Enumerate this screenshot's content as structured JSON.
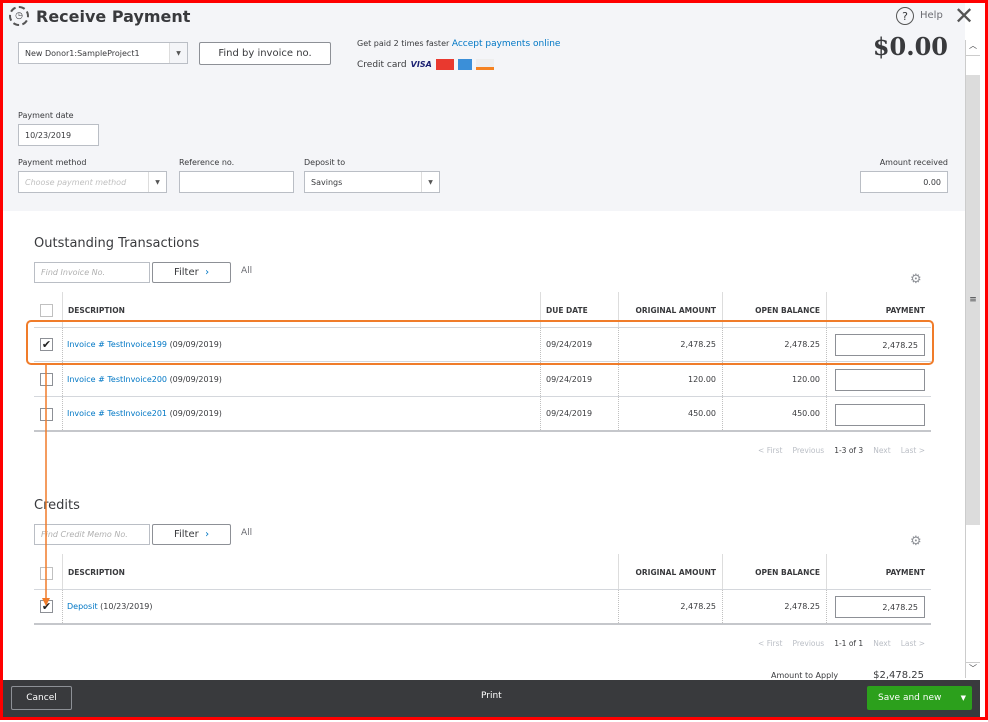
{
  "header": {
    "title": "Receive Payment",
    "help_label": "Help",
    "amount_total": "$0.00"
  },
  "customer": {
    "value": "New Donor1:SampleProject1"
  },
  "find_invoice_label": "Find by invoice no.",
  "promo": {
    "text": "Get paid 2 times faster",
    "link": "Accept payments online",
    "credit_card_label": "Credit card",
    "cards": [
      "VISA",
      "MasterCard",
      "AmEx",
      "Discover"
    ]
  },
  "payment_date": {
    "label": "Payment date",
    "value": "10/23/2019"
  },
  "payment_method": {
    "label": "Payment method",
    "placeholder": "Choose payment method"
  },
  "reference": {
    "label": "Reference no.",
    "value": ""
  },
  "deposit_to": {
    "label": "Deposit to",
    "value": "Savings"
  },
  "amount_received": {
    "label": "Amount received",
    "value": "0.00"
  },
  "outstanding": {
    "title": "Outstanding Transactions",
    "search_placeholder": "Find Invoice No.",
    "filter_label": "Filter",
    "all_label": "All",
    "columns": [
      "DESCRIPTION",
      "DUE DATE",
      "ORIGINAL AMOUNT",
      "OPEN BALANCE",
      "PAYMENT"
    ],
    "rows": [
      {
        "checked": true,
        "link": "Invoice # TestInvoice199",
        "date": "(09/09/2019)",
        "due": "09/24/2019",
        "original": "2,478.25",
        "open": "2,478.25",
        "payment": "2,478.25"
      },
      {
        "checked": false,
        "link": "Invoice # TestInvoice200",
        "date": "(09/09/2019)",
        "due": "09/24/2019",
        "original": "120.00",
        "open": "120.00",
        "payment": ""
      },
      {
        "checked": false,
        "link": "Invoice # TestInvoice201",
        "date": "(09/09/2019)",
        "due": "09/24/2019",
        "original": "450.00",
        "open": "450.00",
        "payment": ""
      }
    ],
    "pager": {
      "first": "< First",
      "previous": "Previous",
      "range": "1-3 of 3",
      "next": "Next",
      "last": "Last >"
    }
  },
  "credits": {
    "title": "Credits",
    "search_placeholder": "Find Credit Memo No.",
    "filter_label": "Filter",
    "all_label": "All",
    "columns": [
      "DESCRIPTION",
      "ORIGINAL AMOUNT",
      "OPEN BALANCE",
      "PAYMENT"
    ],
    "rows": [
      {
        "checked": true,
        "link": "Deposit",
        "date": "(10/23/2019)",
        "original": "2,478.25",
        "open": "2,478.25",
        "payment": "2,478.25"
      }
    ],
    "pager": {
      "first": "< First",
      "previous": "Previous",
      "range": "1-1 of 1",
      "next": "Next",
      "last": "Last >"
    }
  },
  "amount_to_apply": {
    "label": "Amount to Apply",
    "value": "$2,478.25"
  },
  "footer": {
    "cancel": "Cancel",
    "print": "Print",
    "save": "Save and new"
  },
  "colors": {
    "accent_green": "#2ca01c",
    "link_blue": "#0077c5",
    "annotation_orange": "#f07c2a",
    "frame_red": "#ff0000",
    "footer_bg": "#393a3d"
  }
}
